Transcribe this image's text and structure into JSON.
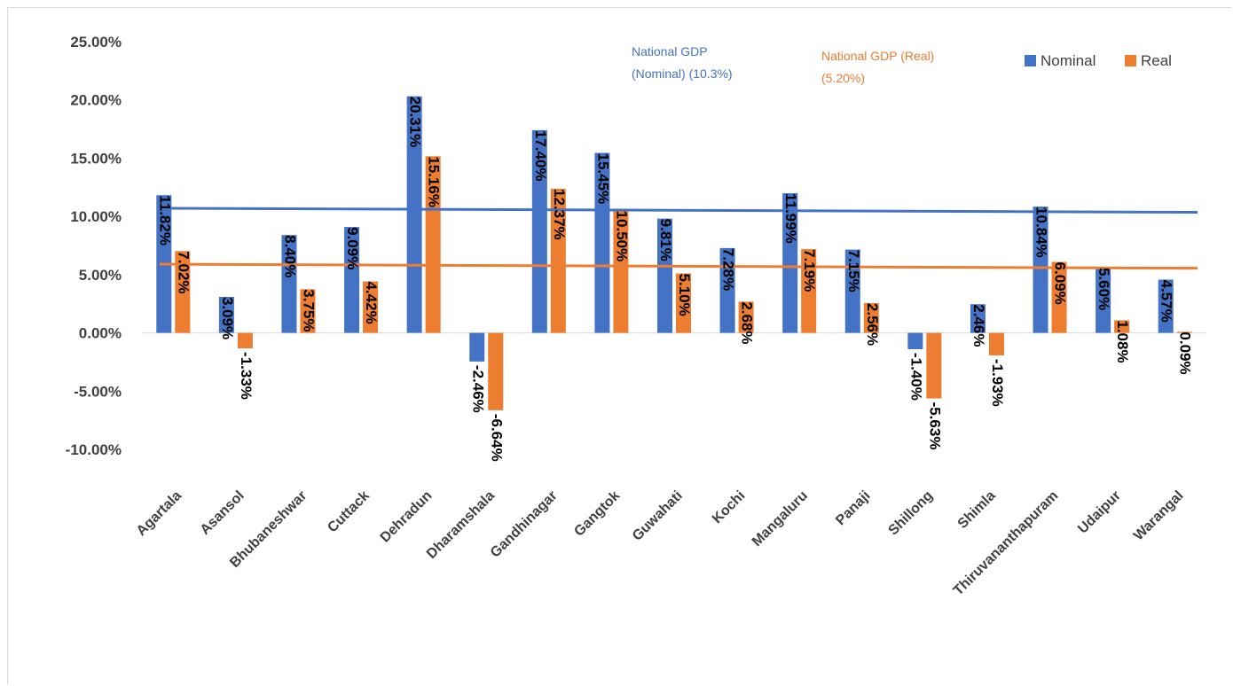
{
  "chart_data": {
    "type": "bar",
    "categories": [
      "Agartala",
      "Asansol",
      "Bhubaneshwar",
      "Cuttack",
      "Dehradun",
      "Dharamshala",
      "Gandhinagar",
      "Gangtok",
      "Guwahati",
      "Kochi",
      "Mangaluru",
      "Panaji",
      "Shillong",
      "Shimla",
      "Thiruvananthapuram",
      "Udaipur",
      "Warangal"
    ],
    "series": [
      {
        "name": "Nominal",
        "color": "#4472c4",
        "values": [
          11.82,
          3.09,
          8.4,
          9.09,
          20.31,
          -2.46,
          17.4,
          15.45,
          9.81,
          7.28,
          11.99,
          7.15,
          -1.4,
          2.46,
          10.84,
          5.6,
          4.57
        ],
        "labels": [
          "11.82%",
          "3.09%",
          "8.40%",
          "9.09%",
          "20.31%",
          "-2.46%",
          "17.40%",
          "15.45%",
          "9.81%",
          "7.28%",
          "11.99%",
          "7.15%",
          "-1.40%",
          "2.46%",
          "10.84%",
          "5.60%",
          "4.57%"
        ]
      },
      {
        "name": "Real",
        "color": "#ed7d31",
        "values": [
          7.02,
          -1.33,
          3.75,
          4.42,
          15.16,
          -6.64,
          12.37,
          10.5,
          5.1,
          2.68,
          7.19,
          2.56,
          -5.63,
          -1.93,
          6.09,
          1.08,
          0.09
        ],
        "labels": [
          "7.02%",
          "-1.33%",
          "3.75%",
          "4.42%",
          "15.16%",
          "-6.64%",
          "12.37%",
          "10.50%",
          "5.10%",
          "2.68%",
          "7.19%",
          "2.56%",
          "-5.63%",
          "-1.93%",
          "6.09%",
          "1.08%",
          "0.09%"
        ]
      }
    ],
    "reference_lines": [
      {
        "name": "National GDP (Nominal) (10.3%)",
        "color": "#4472c4",
        "y_start": 10.7,
        "y_end": 10.35
      },
      {
        "name": "National GDP (Real) (5.20%)",
        "color": "#ed7d31",
        "y_start": 5.9,
        "y_end": 5.55
      }
    ],
    "annotations": [
      {
        "lines": [
          "National GDP",
          "(Nominal) (10.3%)"
        ],
        "color": "#4472c4"
      },
      {
        "lines": [
          "National GDP (Real)",
          "(5.20%)"
        ],
        "color": "#ed7d31"
      }
    ],
    "yticks": [
      "25.00%",
      "20.00%",
      "15.00%",
      "10.00%",
      "5.00%",
      "0.00%",
      "-5.00%",
      "-10.00%"
    ],
    "ytick_values": [
      25,
      20,
      15,
      10,
      5,
      0,
      -5,
      -10
    ],
    "ylim": [
      -10,
      25
    ],
    "grid": false,
    "legend_position": "top-right",
    "title": "",
    "xlabel": "",
    "ylabel": ""
  }
}
